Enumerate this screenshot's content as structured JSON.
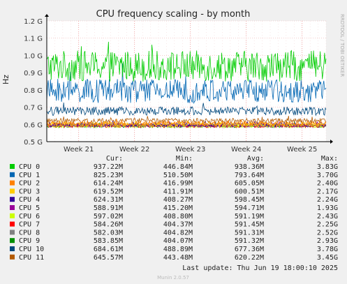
{
  "chart_data": {
    "type": "line",
    "title": "CPU frequency scaling - by month",
    "ylabel": "Hz",
    "ylim": [
      500000000,
      1200000000
    ],
    "yticks": [
      {
        "v": 500000000,
        "label": "0.5 G"
      },
      {
        "v": 600000000,
        "label": "0.6 G"
      },
      {
        "v": 700000000,
        "label": "0.7 G"
      },
      {
        "v": 800000000,
        "label": "0.8 G"
      },
      {
        "v": 900000000,
        "label": "0.9 G"
      },
      {
        "v": 1000000000,
        "label": "1.0 G"
      },
      {
        "v": 1100000000,
        "label": "1.1 G"
      },
      {
        "v": 1200000000,
        "label": "1.2 G"
      }
    ],
    "xrange": [
      "2025-05-15",
      "2025-06-19"
    ],
    "xticks": [
      {
        "date": "2025-05-19",
        "label": "Week 21"
      },
      {
        "date": "2025-05-26",
        "label": "Week 22"
      },
      {
        "date": "2025-06-02",
        "label": "Week 23"
      },
      {
        "date": "2025-06-09",
        "label": "Week 24"
      },
      {
        "date": "2025-06-16",
        "label": "Week 25"
      }
    ],
    "grid": true,
    "legend_columns": [
      "Cur:",
      "Min:",
      "Avg:",
      "Max:"
    ],
    "series": [
      {
        "name": "CPU 0",
        "color": "#00cc00",
        "cur": "937.22M",
        "min": "446.84M",
        "avg": "938.36M",
        "max": "3.83G",
        "avg_hz": 938360000,
        "spread_hz": 90000000
      },
      {
        "name": "CPU 1",
        "color": "#0066b3",
        "cur": "825.23M",
        "min": "510.50M",
        "avg": "793.64M",
        "max": "3.70G",
        "avg_hz": 793640000,
        "spread_hz": 70000000
      },
      {
        "name": "CPU 2",
        "color": "#ff8000",
        "cur": "614.24M",
        "min": "416.99M",
        "avg": "605.05M",
        "max": "2.40G",
        "avg_hz": 605050000,
        "spread_hz": 12000000
      },
      {
        "name": "CPU 3",
        "color": "#ffcc00",
        "cur": "619.52M",
        "min": "411.91M",
        "avg": "600.51M",
        "max": "2.17G",
        "avg_hz": 600510000,
        "spread_hz": 12000000
      },
      {
        "name": "CPU 4",
        "color": "#330099",
        "cur": "624.31M",
        "min": "408.27M",
        "avg": "598.45M",
        "max": "2.24G",
        "avg_hz": 598450000,
        "spread_hz": 12000000
      },
      {
        "name": "CPU 5",
        "color": "#990099",
        "cur": "588.91M",
        "min": "415.20M",
        "avg": "594.71M",
        "max": "1.93G",
        "avg_hz": 594710000,
        "spread_hz": 10000000
      },
      {
        "name": "CPU 6",
        "color": "#ccff00",
        "cur": "597.02M",
        "min": "408.80M",
        "avg": "591.19M",
        "max": "2.43G",
        "avg_hz": 591190000,
        "spread_hz": 10000000
      },
      {
        "name": "CPU 7",
        "color": "#ff0000",
        "cur": "584.26M",
        "min": "404.37M",
        "avg": "591.45M",
        "max": "2.25G",
        "avg_hz": 591450000,
        "spread_hz": 10000000
      },
      {
        "name": "CPU 8",
        "color": "#808080",
        "cur": "582.03M",
        "min": "404.82M",
        "avg": "591.31M",
        "max": "2.52G",
        "avg_hz": 591310000,
        "spread_hz": 10000000
      },
      {
        "name": "CPU 9",
        "color": "#008f00",
        "cur": "583.85M",
        "min": "404.07M",
        "avg": "591.32M",
        "max": "2.93G",
        "avg_hz": 591320000,
        "spread_hz": 10000000
      },
      {
        "name": "CPU 10",
        "color": "#00487d",
        "cur": "684.61M",
        "min": "488.89M",
        "avg": "677.36M",
        "max": "3.78G",
        "avg_hz": 677360000,
        "spread_hz": 25000000
      },
      {
        "name": "CPU 11",
        "color": "#b35a00",
        "cur": "645.57M",
        "min": "443.48M",
        "avg": "620.22M",
        "max": "3.45G",
        "avg_hz": 620220000,
        "spread_hz": 15000000
      }
    ],
    "last_update": "Last update:  Thu Jun 19 18:00:10 2025",
    "watermark": "RRDTOOL / TOBI OETIKER",
    "footer": "Munin 2.0.57"
  }
}
